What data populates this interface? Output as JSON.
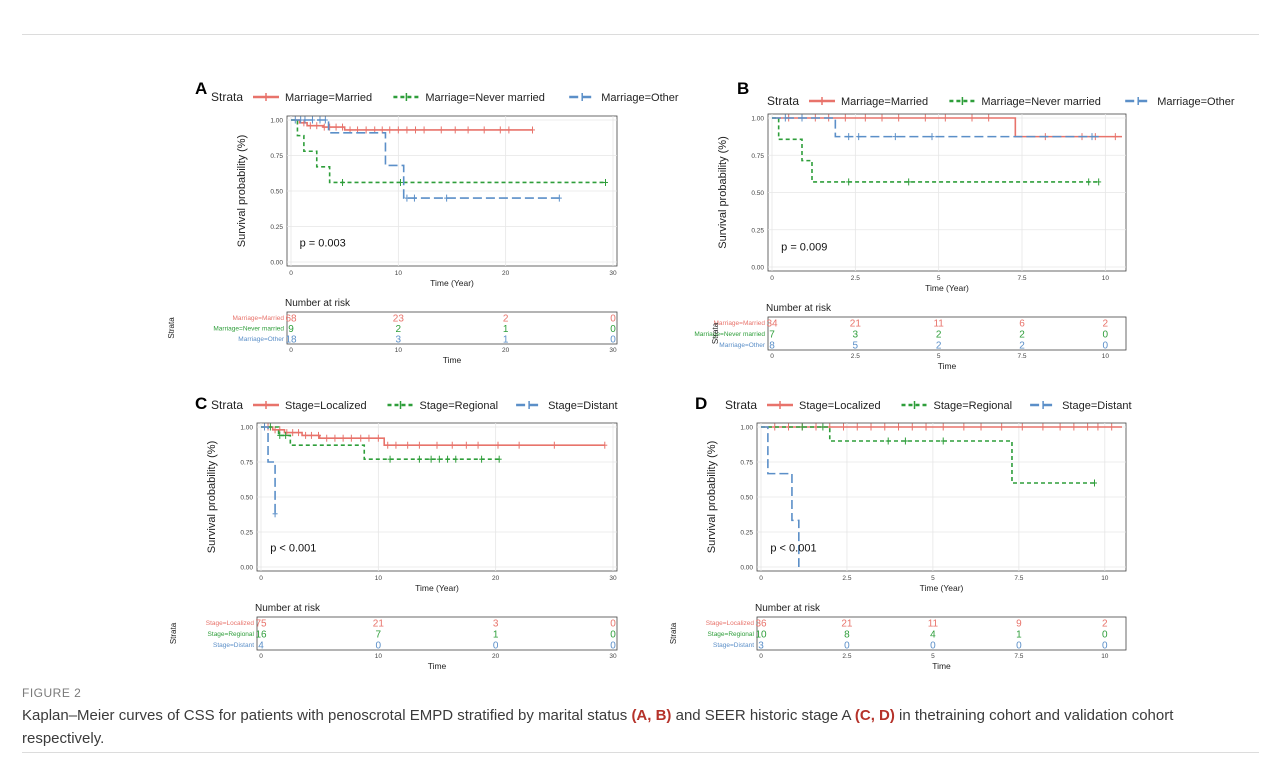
{
  "figure": {
    "label": "FIGURE 2",
    "caption_parts": [
      {
        "text": "Kaplan–Meier curves of CSS for patients with penoscrotal EMPD stratified by marital status ",
        "bold": false
      },
      {
        "text": "(A, B)",
        "bold": true
      },
      {
        "text": " and SEER historic stage A ",
        "bold": false
      },
      {
        "text": "(C, D)",
        "bold": true
      },
      {
        "text": " in thetraining cohort and validation cohort respectively.",
        "bold": false
      }
    ]
  },
  "colors": {
    "red": "#e8736b",
    "green": "#2e9e3a",
    "blue": "#5b8fc8"
  },
  "chart_data": [
    {
      "panel": "A",
      "type": "line",
      "legend_title": "Strata",
      "legend_position": "top",
      "ylabel": "Survival probability (%)",
      "xlabel": "Time (Year)",
      "xlim": [
        0,
        30
      ],
      "ylim": [
        0,
        1
      ],
      "xticks": [
        "0",
        "10",
        "20",
        "30"
      ],
      "yticks": [
        "0.00",
        "0.25",
        "0.50",
        "0.75",
        "1.00"
      ],
      "pvalue": "p = 0.003",
      "series": [
        {
          "name": "Marriage=Married",
          "color": "red",
          "dash": "solid",
          "steps": [
            [
              0,
              1
            ],
            [
              0.8,
              0.98
            ],
            [
              1.5,
              0.96
            ],
            [
              3,
              0.95
            ],
            [
              5,
              0.93
            ],
            [
              22.5,
              0.93
            ]
          ],
          "censors": [
            1.2,
            1.8,
            2.4,
            3.1,
            3.6,
            4.2,
            4.8,
            5.5,
            6.2,
            7,
            7.8,
            8.5,
            9.2,
            10,
            10.8,
            11.6,
            12.4,
            14,
            15.3,
            16.5,
            18,
            19.5,
            20.3,
            22.5
          ]
        },
        {
          "name": "Marriage=Never married",
          "color": "green",
          "dash": "dash",
          "steps": [
            [
              0,
              1
            ],
            [
              0.6,
              0.89
            ],
            [
              1.2,
              0.78
            ],
            [
              2.4,
              0.67
            ],
            [
              3.6,
              0.56
            ],
            [
              29.3,
              0.56
            ]
          ],
          "censors": [
            4.8,
            10.2,
            29.3
          ]
        },
        {
          "name": "Marriage=Other",
          "color": "blue",
          "dash": "longdash",
          "steps": [
            [
              0,
              1
            ],
            [
              3.5,
              0.91
            ],
            [
              8.8,
              0.68
            ],
            [
              10.5,
              0.45
            ],
            [
              25,
              0.45
            ]
          ],
          "censors": [
            0.4,
            0.9,
            1.3,
            2,
            2.7,
            3.2,
            10.8,
            11.5,
            14.5,
            25
          ]
        }
      ],
      "risk_table": {
        "title": "Number at risk",
        "ylabel": "Strata",
        "xlabel": "Time",
        "xticks": [
          "0",
          "10",
          "20",
          "30"
        ],
        "rows": [
          {
            "label": "Marriage=Married",
            "color": "red",
            "values": [
              "68",
              "23",
              "2",
              "0"
            ]
          },
          {
            "label": "Marriage=Never married",
            "color": "green",
            "values": [
              "9",
              "2",
              "1",
              "0"
            ]
          },
          {
            "label": "Marriage=Other",
            "color": "blue",
            "values": [
              "18",
              "3",
              "1",
              "0"
            ]
          }
        ]
      }
    },
    {
      "panel": "B",
      "type": "line",
      "legend_title": "Strata",
      "legend_position": "top",
      "ylabel": "Survival probability (%)",
      "xlabel": "Time (Year)",
      "xlim": [
        0,
        10.5
      ],
      "ylim": [
        0,
        1
      ],
      "xticks": [
        "0",
        "2.5",
        "5",
        "7.5",
        "10"
      ],
      "yticks": [
        "0.00",
        "0.25",
        "0.50",
        "0.75",
        "1.00"
      ],
      "pvalue": "p = 0.009",
      "series": [
        {
          "name": "Marriage=Married",
          "color": "red",
          "dash": "solid",
          "steps": [
            [
              0,
              1
            ],
            [
              7.3,
              0.875
            ],
            [
              10.5,
              0.875
            ]
          ],
          "censors": [
            0.5,
            0.9,
            1.3,
            1.7,
            2.2,
            2.8,
            3.3,
            3.8,
            4.6,
            5.2,
            6,
            6.5,
            8.2,
            9.3,
            9.7,
            10.3
          ]
        },
        {
          "name": "Marriage=Never married",
          "color": "green",
          "dash": "dash",
          "steps": [
            [
              0,
              1
            ],
            [
              0.2,
              0.857
            ],
            [
              0.9,
              0.714
            ],
            [
              1.2,
              0.571
            ],
            [
              9.8,
              0.571
            ]
          ],
          "censors": [
            2.3,
            4.1,
            9.5,
            9.8
          ]
        },
        {
          "name": "Marriage=Other",
          "color": "blue",
          "dash": "longdash",
          "steps": [
            [
              0,
              1
            ],
            [
              1.9,
              0.875
            ],
            [
              9.8,
              0.875
            ]
          ],
          "censors": [
            0.4,
            0.9,
            2.3,
            2.6,
            3.7,
            4.8,
            9.6
          ]
        }
      ],
      "risk_table": {
        "title": "Number at risk",
        "ylabel": "Strata",
        "xlabel": "Time",
        "xticks": [
          "0",
          "2.5",
          "5",
          "7.5",
          "10"
        ],
        "rows": [
          {
            "label": "Marriage=Married",
            "color": "red",
            "values": [
              "34",
              "21",
              "11",
              "6",
              "2"
            ]
          },
          {
            "label": "Marriage=Never married",
            "color": "green",
            "values": [
              "7",
              "3",
              "2",
              "2",
              "0"
            ]
          },
          {
            "label": "Marriage=Other",
            "color": "blue",
            "values": [
              "8",
              "5",
              "2",
              "2",
              "0"
            ]
          }
        ]
      }
    },
    {
      "panel": "C",
      "type": "line",
      "legend_title": "Strata",
      "legend_position": "top",
      "ylabel": "Survival probability (%)",
      "xlabel": "Time (Year)",
      "xlim": [
        0,
        30
      ],
      "ylim": [
        0,
        1
      ],
      "xticks": [
        "0",
        "10",
        "20",
        "30"
      ],
      "yticks": [
        "0.00",
        "0.25",
        "0.50",
        "0.75",
        "1.00"
      ],
      "pvalue": "p < 0.001",
      "series": [
        {
          "name": "Stage=Localized",
          "color": "red",
          "dash": "solid",
          "steps": [
            [
              0,
              1
            ],
            [
              1,
              0.98
            ],
            [
              2,
              0.96
            ],
            [
              3.5,
              0.94
            ],
            [
              5,
              0.92
            ],
            [
              10.5,
              0.87
            ],
            [
              29.3,
              0.87
            ]
          ],
          "censors": [
            0.6,
            1.2,
            1.6,
            2.2,
            2.7,
            3.2,
            3.8,
            4.3,
            4.9,
            5.6,
            6.3,
            7,
            7.7,
            8.5,
            9.2,
            10,
            10.8,
            11.5,
            12.5,
            13.5,
            15,
            16.3,
            17.5,
            18.5,
            20.2,
            22,
            25,
            29.3
          ]
        },
        {
          "name": "Stage=Regional",
          "color": "green",
          "dash": "dash",
          "steps": [
            [
              0,
              1
            ],
            [
              1.5,
              0.94
            ],
            [
              2.5,
              0.87
            ],
            [
              8.8,
              0.77
            ],
            [
              20.3,
              0.77
            ]
          ],
          "censors": [
            0.8,
            1.6,
            2.1,
            11,
            13.5,
            14.5,
            15.2,
            15.9,
            16.6,
            18.8,
            20.3
          ]
        },
        {
          "name": "Stage=Distant",
          "color": "blue",
          "dash": "longdash",
          "steps": [
            [
              0,
              1
            ],
            [
              0.6,
              0.75
            ],
            [
              1.2,
              0.38
            ]
          ],
          "censors": [
            0.3,
            1.2
          ]
        }
      ],
      "risk_table": {
        "title": "Number at risk",
        "ylabel": "Strata",
        "xlabel": "Time",
        "xticks": [
          "0",
          "10",
          "20",
          "30"
        ],
        "rows": [
          {
            "label": "Stage=Localized",
            "color": "red",
            "values": [
              "75",
              "21",
              "3",
              "0"
            ]
          },
          {
            "label": "Stage=Regional",
            "color": "green",
            "values": [
              "16",
              "7",
              "1",
              "0"
            ]
          },
          {
            "label": "Stage=Distant",
            "color": "blue",
            "values": [
              "4",
              "0",
              "0",
              "0"
            ]
          }
        ]
      }
    },
    {
      "panel": "D",
      "type": "line",
      "legend_title": "Strata",
      "legend_position": "top",
      "ylabel": "Survival probability (%)",
      "xlabel": "Time (Year)",
      "xlim": [
        0,
        10.5
      ],
      "ylim": [
        0,
        1
      ],
      "xticks": [
        "0",
        "2.5",
        "5",
        "7.5",
        "10"
      ],
      "yticks": [
        "0.00",
        "0.25",
        "0.50",
        "0.75",
        "1.00"
      ],
      "pvalue": "p < 0.001",
      "series": [
        {
          "name": "Stage=Localized",
          "color": "red",
          "dash": "solid",
          "steps": [
            [
              0,
              1
            ],
            [
              10.5,
              1
            ]
          ],
          "censors": [
            0.4,
            0.8,
            1.2,
            1.6,
            2,
            2.4,
            2.8,
            3.2,
            3.6,
            4,
            4.4,
            4.8,
            5.3,
            5.9,
            6.4,
            7,
            7.6,
            8.2,
            8.7,
            9.1,
            9.5,
            9.8,
            10.2
          ]
        },
        {
          "name": "Stage=Regional",
          "color": "green",
          "dash": "dash",
          "steps": [
            [
              0,
              1
            ],
            [
              2,
              0.9
            ],
            [
              7.3,
              0.6
            ],
            [
              9.7,
              0.6
            ]
          ],
          "censors": [
            1.2,
            1.8,
            3.7,
            4.2,
            5.3,
            9.7
          ]
        },
        {
          "name": "Stage=Distant",
          "color": "blue",
          "dash": "longdash",
          "steps": [
            [
              0,
              1
            ],
            [
              0.2,
              0.667
            ],
            [
              0.9,
              0.333
            ],
            [
              1.1,
              0
            ]
          ],
          "censors": []
        }
      ],
      "risk_table": {
        "title": "Number at risk",
        "ylabel": "Strata",
        "xlabel": "Time",
        "xticks": [
          "0",
          "2.5",
          "5",
          "7.5",
          "10"
        ],
        "rows": [
          {
            "label": "Stage=Localized",
            "color": "red",
            "values": [
              "36",
              "21",
              "11",
              "9",
              "2"
            ]
          },
          {
            "label": "Stage=Regional",
            "color": "green",
            "values": [
              "10",
              "8",
              "4",
              "1",
              "0"
            ]
          },
          {
            "label": "Stage=Distant",
            "color": "blue",
            "values": [
              "3",
              "0",
              "0",
              "0",
              "0"
            ]
          }
        ]
      }
    }
  ]
}
